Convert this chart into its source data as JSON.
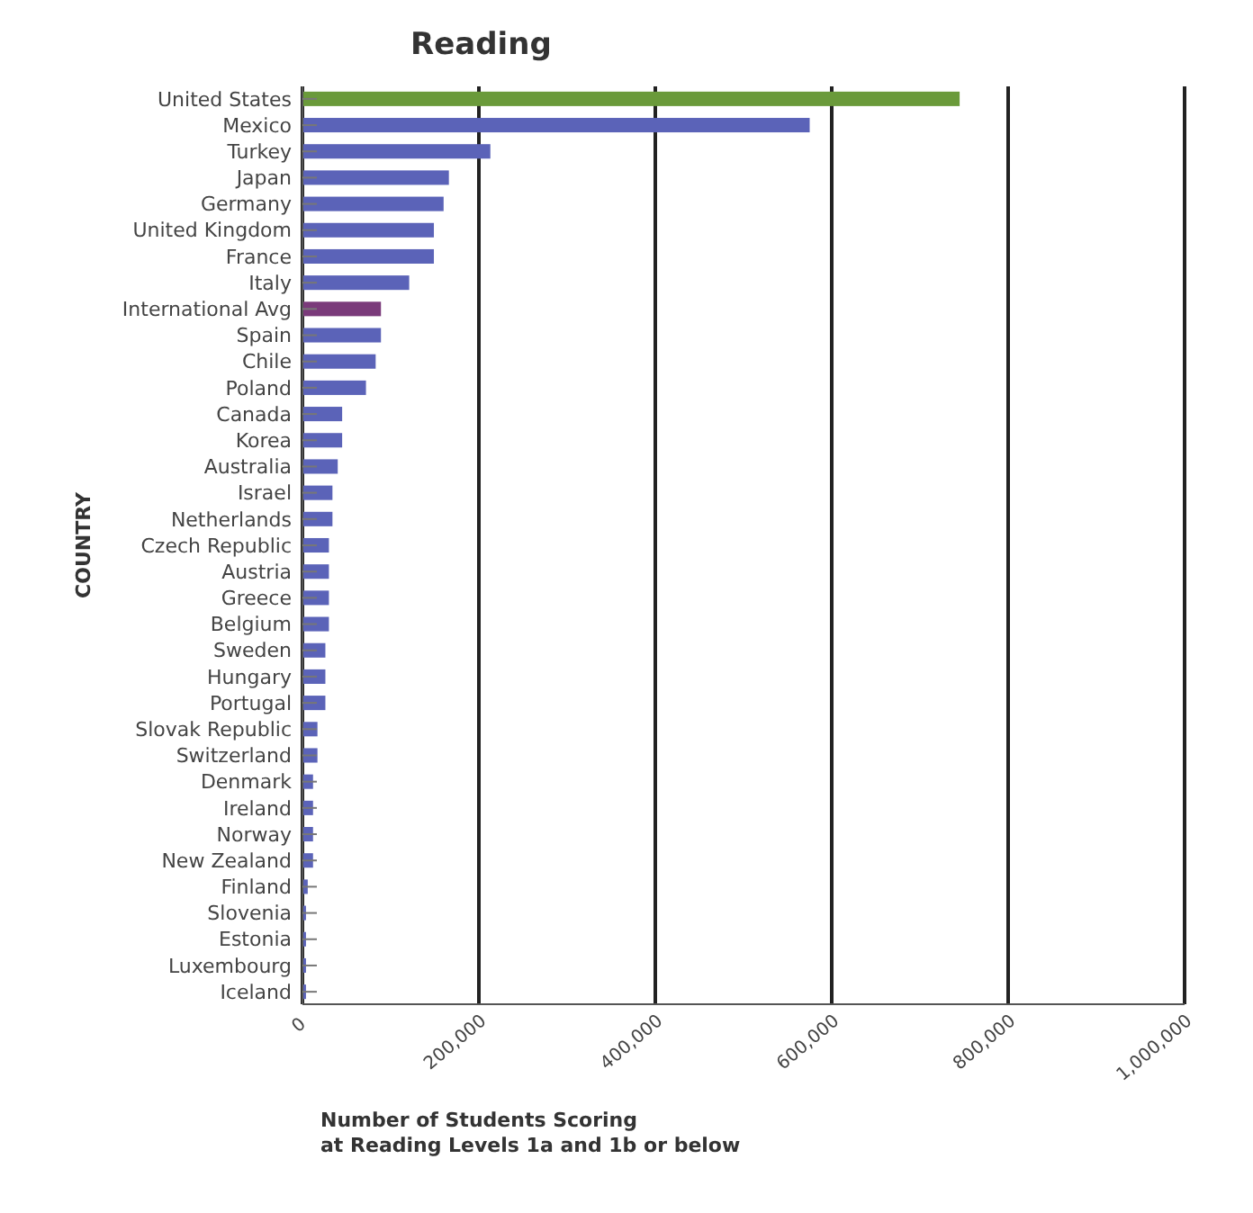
{
  "chart_data": {
    "type": "bar",
    "orientation": "horizontal",
    "title": "Reading",
    "ylabel": "COUNTRY",
    "xlabel": "Number of Students Scoring\nat Reading Levels 1a and 1b or below",
    "categories": [
      "United States",
      "Mexico",
      "Turkey",
      "Japan",
      "Germany",
      "United Kingdom",
      "France",
      "Italy",
      "International Avg",
      "Spain",
      "Chile",
      "Poland",
      "Canada",
      "Korea",
      "Australia",
      "Israel",
      "Netherlands",
      "Czech Republic",
      "Austria",
      "Greece",
      "Belgium",
      "Sweden",
      "Hungary",
      "Portugal",
      "Slovak Republic",
      "Switzerland",
      "Denmark",
      "Ireland",
      "Norway",
      "New Zealand",
      "Finland",
      "Slovenia",
      "Estonia",
      "Luxembourg",
      "Iceland"
    ],
    "values": [
      745000,
      575000,
      213000,
      166000,
      160000,
      149000,
      149000,
      121000,
      89000,
      89000,
      83000,
      72000,
      45000,
      45000,
      40000,
      34000,
      34000,
      30000,
      30000,
      30000,
      30000,
      26000,
      26000,
      26000,
      17000,
      17000,
      12000,
      12000,
      12000,
      12000,
      6000,
      4000,
      4000,
      4000,
      4000
    ],
    "colors": [
      "#6a9a3a",
      "#5b63b8",
      "#5b63b8",
      "#5b63b8",
      "#5b63b8",
      "#5b63b8",
      "#5b63b8",
      "#5b63b8",
      "#7a3a7a",
      "#5b63b8",
      "#5b63b8",
      "#5b63b8",
      "#5b63b8",
      "#5b63b8",
      "#5b63b8",
      "#5b63b8",
      "#5b63b8",
      "#5b63b8",
      "#5b63b8",
      "#5b63b8",
      "#5b63b8",
      "#5b63b8",
      "#5b63b8",
      "#5b63b8",
      "#5b63b8",
      "#5b63b8",
      "#5b63b8",
      "#5b63b8",
      "#5b63b8",
      "#5b63b8",
      "#5b63b8",
      "#5b63b8",
      "#5b63b8",
      "#5b63b8",
      "#5b63b8"
    ],
    "xlim": [
      0,
      1000000
    ],
    "xticks": [
      0,
      {
        "value": 200000,
        "label": "200,000"
      },
      {
        "value": 400000,
        "label": "400,000"
      },
      {
        "value": 600000,
        "label": "600,000"
      },
      {
        "value": 800000,
        "label": "800,000"
      },
      {
        "value": 1000000,
        "label": "1,000,000"
      }
    ],
    "grid": "x"
  }
}
